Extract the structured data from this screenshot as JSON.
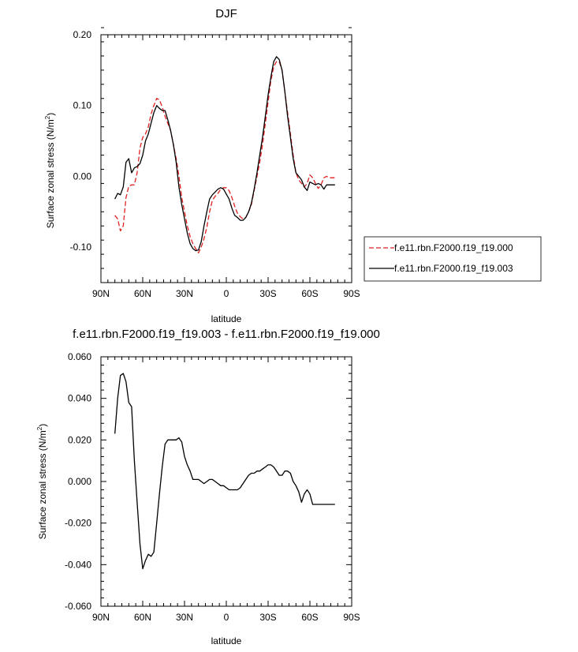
{
  "chart_data": [
    {
      "type": "line",
      "title": "DJF",
      "xlabel": "latitude",
      "ylabel": "Surface zonal stress (N/m",
      "ylabel_sup": "2",
      "ylabel_close": ")",
      "xlim": [
        90,
        -90
      ],
      "ylim": [
        -0.15,
        0.2
      ],
      "x_ticks": [
        90,
        60,
        30,
        0,
        -30,
        -60,
        -90
      ],
      "x_tick_labels": [
        "90N",
        "60N",
        "30N",
        "0",
        "30S",
        "60S",
        "90S"
      ],
      "y_ticks": [
        0.2,
        0.1,
        0.0,
        -0.1
      ],
      "y_tick_labels": [
        "0.20",
        "0.10",
        "0.00",
        "-0.10"
      ],
      "legend": "outside-right",
      "series": [
        {
          "name": "f.e11.rbn.F2000.f19_f19.000",
          "color": "#e02020",
          "dash": "dashed",
          "x": [
            80,
            78,
            76,
            74,
            72,
            70,
            68,
            66,
            64,
            62,
            60,
            58,
            56,
            54,
            52,
            50,
            48,
            46,
            44,
            42,
            40,
            38,
            36,
            34,
            32,
            30,
            28,
            26,
            24,
            22,
            20,
            18,
            16,
            14,
            12,
            10,
            8,
            6,
            4,
            2,
            0,
            -2,
            -4,
            -6,
            -8,
            -10,
            -12,
            -14,
            -16,
            -18,
            -20,
            -22,
            -24,
            -26,
            -28,
            -30,
            -32,
            -34,
            -36,
            -38,
            -40,
            -42,
            -44,
            -46,
            -48,
            -50,
            -52,
            -54,
            -56,
            -58,
            -60,
            -62,
            -64,
            -66,
            -68,
            -70,
            -72,
            -74,
            -76,
            -78
          ],
          "values": [
            -0.055,
            -0.06,
            -0.077,
            -0.07,
            -0.03,
            -0.014,
            -0.012,
            -0.012,
            0.005,
            0.04,
            0.055,
            0.06,
            0.07,
            0.088,
            0.1,
            0.11,
            0.108,
            0.098,
            0.085,
            0.075,
            0.065,
            0.045,
            0.025,
            0.0,
            -0.03,
            -0.05,
            -0.07,
            -0.085,
            -0.095,
            -0.102,
            -0.108,
            -0.1,
            -0.088,
            -0.072,
            -0.05,
            -0.034,
            -0.028,
            -0.024,
            -0.018,
            -0.016,
            -0.016,
            -0.02,
            -0.03,
            -0.042,
            -0.052,
            -0.057,
            -0.06,
            -0.058,
            -0.05,
            -0.04,
            -0.02,
            0.0,
            0.02,
            0.045,
            0.075,
            0.105,
            0.135,
            0.155,
            0.162,
            0.162,
            0.15,
            0.12,
            0.09,
            0.06,
            0.03,
            0.005,
            -0.005,
            -0.01,
            -0.015,
            -0.01,
            0.002,
            -0.002,
            -0.01,
            -0.017,
            -0.012,
            -0.002,
            0.0,
            -0.002,
            -0.002,
            -0.002
          ]
        },
        {
          "name": "f.e11.rbn.F2000.f19_f19.003",
          "color": "#000000",
          "dash": "solid",
          "x": [
            80,
            78,
            76,
            74,
            72,
            70,
            68,
            66,
            64,
            62,
            60,
            58,
            56,
            54,
            52,
            50,
            48,
            46,
            44,
            42,
            40,
            38,
            36,
            34,
            32,
            30,
            28,
            26,
            24,
            22,
            20,
            18,
            16,
            14,
            12,
            10,
            8,
            6,
            4,
            2,
            0,
            -2,
            -4,
            -6,
            -8,
            -10,
            -12,
            -14,
            -16,
            -18,
            -20,
            -22,
            -24,
            -26,
            -28,
            -30,
            -32,
            -34,
            -36,
            -38,
            -40,
            -42,
            -44,
            -46,
            -48,
            -50,
            -52,
            -54,
            -56,
            -58,
            -60,
            -62,
            -64,
            -66,
            -68,
            -70,
            -72,
            -74,
            -76,
            -78
          ],
          "values": [
            -0.032,
            -0.024,
            -0.026,
            -0.015,
            0.02,
            0.025,
            0.005,
            0.012,
            0.014,
            0.018,
            0.03,
            0.05,
            0.06,
            0.075,
            0.09,
            0.1,
            0.096,
            0.093,
            0.093,
            0.08,
            0.065,
            0.045,
            0.02,
            -0.015,
            -0.04,
            -0.06,
            -0.08,
            -0.095,
            -0.102,
            -0.105,
            -0.104,
            -0.092,
            -0.07,
            -0.05,
            -0.032,
            -0.026,
            -0.022,
            -0.018,
            -0.016,
            -0.018,
            -0.025,
            -0.032,
            -0.045,
            -0.055,
            -0.058,
            -0.062,
            -0.062,
            -0.058,
            -0.05,
            -0.038,
            -0.018,
            0.005,
            0.03,
            0.055,
            0.085,
            0.115,
            0.14,
            0.162,
            0.169,
            0.165,
            0.15,
            0.12,
            0.085,
            0.055,
            0.025,
            0.005,
            0.0,
            -0.005,
            -0.015,
            -0.02,
            -0.008,
            -0.01,
            -0.012,
            -0.01,
            -0.012,
            -0.018,
            -0.012,
            -0.012,
            -0.012,
            -0.012
          ]
        }
      ]
    },
    {
      "type": "line",
      "title": "f.e11.rbn.F2000.f19_f19.003 - f.e11.rbn.F2000.f19_f19.000",
      "xlabel": "latitude",
      "ylabel": "Surface zonal stress (N/m",
      "ylabel_sup": "2",
      "ylabel_close": ")",
      "xlim": [
        90,
        -90
      ],
      "ylim": [
        -0.06,
        0.06
      ],
      "x_ticks": [
        90,
        60,
        30,
        0,
        -30,
        -60,
        -90
      ],
      "x_tick_labels": [
        "90N",
        "60N",
        "30N",
        "0",
        "30S",
        "60S",
        "90S"
      ],
      "y_ticks": [
        0.06,
        0.04,
        0.02,
        0.0,
        -0.02,
        -0.04,
        -0.06
      ],
      "y_tick_labels": [
        "0.060",
        "0.040",
        "0.020",
        "0.000",
        "-0.020",
        "-0.040",
        "-0.060"
      ],
      "series": [
        {
          "name": "",
          "color": "#000000",
          "dash": "solid",
          "x": [
            80,
            78,
            76,
            74,
            72,
            70,
            68,
            66,
            64,
            62,
            60,
            58,
            56,
            54,
            52,
            50,
            48,
            46,
            44,
            42,
            40,
            38,
            36,
            34,
            32,
            30,
            28,
            26,
            24,
            22,
            20,
            18,
            16,
            14,
            12,
            10,
            8,
            6,
            4,
            2,
            0,
            -2,
            -4,
            -6,
            -8,
            -10,
            -12,
            -14,
            -16,
            -18,
            -20,
            -22,
            -24,
            -26,
            -28,
            -30,
            -32,
            -34,
            -36,
            -38,
            -40,
            -42,
            -44,
            -46,
            -48,
            -50,
            -52,
            -54,
            -56,
            -58,
            -60,
            -62,
            -64,
            -66,
            -68,
            -70,
            -72,
            -74,
            -76,
            -78
          ],
          "values": [
            0.023,
            0.04,
            0.051,
            0.052,
            0.048,
            0.038,
            0.036,
            0.01,
            -0.01,
            -0.03,
            -0.042,
            -0.038,
            -0.035,
            -0.036,
            -0.034,
            -0.02,
            -0.006,
            0.007,
            0.018,
            0.02,
            0.02,
            0.02,
            0.02,
            0.021,
            0.019,
            0.012,
            0.008,
            0.005,
            0.001,
            0.001,
            0.001,
            0.0,
            -0.001,
            0.0,
            0.001,
            0.001,
            0.0,
            -0.001,
            -0.002,
            -0.002,
            -0.003,
            -0.004,
            -0.004,
            -0.004,
            -0.004,
            -0.003,
            -0.001,
            0.001,
            0.003,
            0.004,
            0.004,
            0.005,
            0.005,
            0.006,
            0.007,
            0.008,
            0.008,
            0.007,
            0.005,
            0.003,
            0.003,
            0.005,
            0.005,
            0.004,
            0.0,
            -0.002,
            -0.005,
            -0.01,
            -0.006,
            -0.004,
            -0.006,
            -0.011,
            -0.011,
            -0.011,
            -0.011,
            -0.011,
            -0.011,
            -0.011,
            -0.011,
            -0.011
          ]
        }
      ]
    }
  ]
}
